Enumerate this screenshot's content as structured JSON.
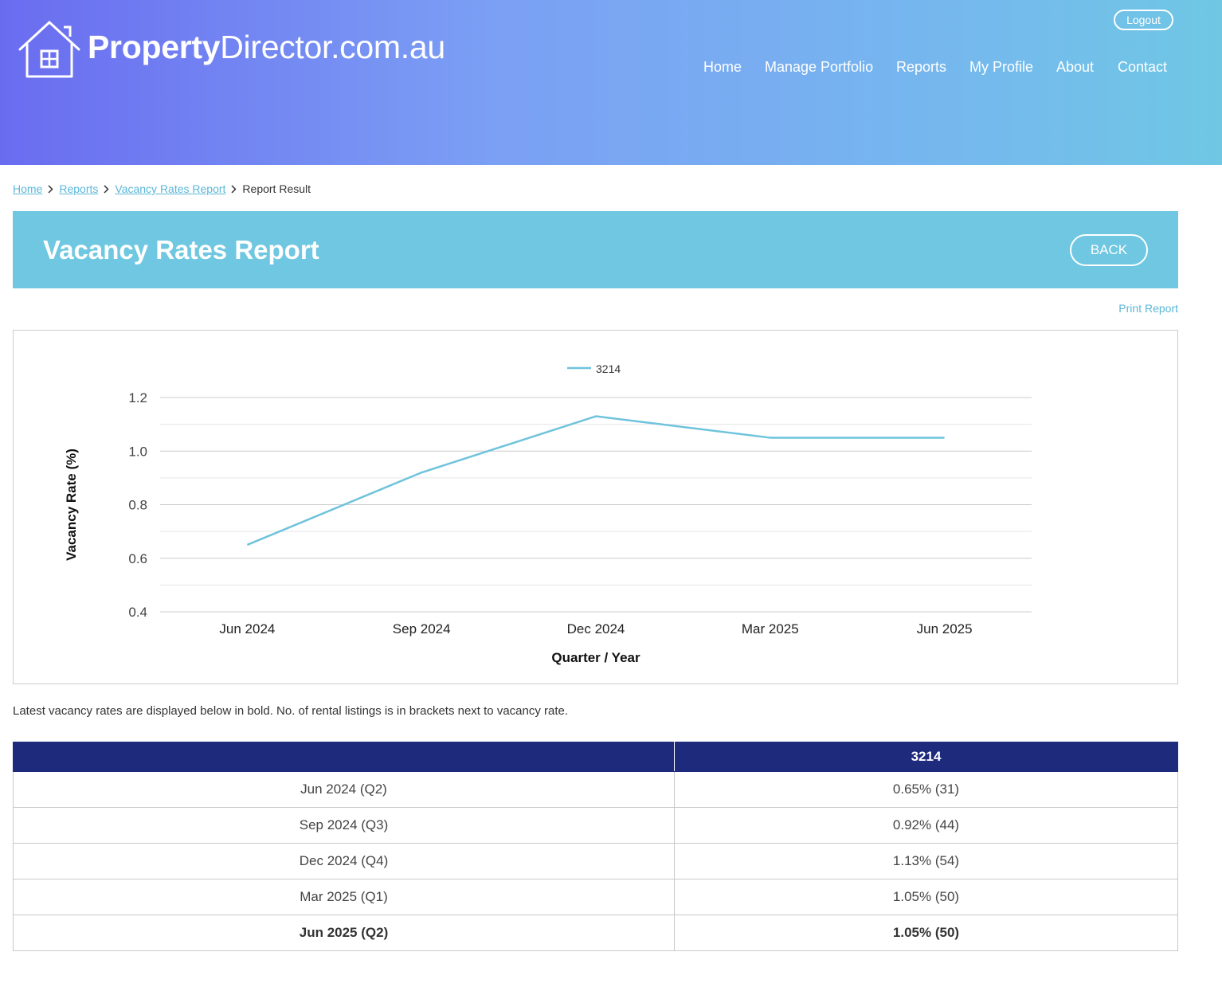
{
  "header": {
    "logo": {
      "bold": "Property",
      "light": "Director.com.au",
      "icon": "house-window-icon"
    },
    "logout_label": "Logout",
    "nav": [
      "Home",
      "Manage Portfolio",
      "Reports",
      "My Profile",
      "About",
      "Contact"
    ]
  },
  "breadcrumb": {
    "links": [
      "Home",
      "Reports",
      "Vacancy Rates Report"
    ],
    "current": "Report Result",
    "separator_icon": "chevron-right-icon"
  },
  "page": {
    "title": "Vacancy Rates Report",
    "back_label": "BACK",
    "print_label": "Print Report",
    "note": "Latest vacancy rates are displayed below in bold. No. of rental listings is in brackets next to vacancy rate."
  },
  "chart_data": {
    "type": "line",
    "categories": [
      "Jun 2024",
      "Sep 2024",
      "Dec 2024",
      "Mar 2025",
      "Jun 2025"
    ],
    "series": [
      {
        "name": "3214",
        "values": [
          0.65,
          0.92,
          1.13,
          1.05,
          1.05
        ],
        "color": "#6fc3dc"
      }
    ],
    "xlabel": "Quarter / Year",
    "ylabel": "Vacancy Rate (%)",
    "ylim": [
      0.4,
      1.2
    ],
    "yticks": [
      "0.4",
      "0.6",
      "0.8",
      "1.0",
      "1.2"
    ],
    "grid": true,
    "legend": "top-center"
  },
  "table": {
    "header": [
      "",
      "3214"
    ],
    "rows": [
      {
        "period": "Jun 2024 (Q2)",
        "value": "0.65% (31)"
      },
      {
        "period": "Sep 2024 (Q3)",
        "value": "0.92% (44)"
      },
      {
        "period": "Dec 2024 (Q4)",
        "value": "1.13% (54)"
      },
      {
        "period": "Mar 2025 (Q1)",
        "value": "1.05% (50)"
      },
      {
        "period": "Jun 2025 (Q2)",
        "value": "1.05% (50)",
        "latest": true
      }
    ]
  },
  "colors": {
    "accent": "#6fc7e1",
    "link": "#5ab7d8",
    "table_header": "#1e2a7c"
  }
}
